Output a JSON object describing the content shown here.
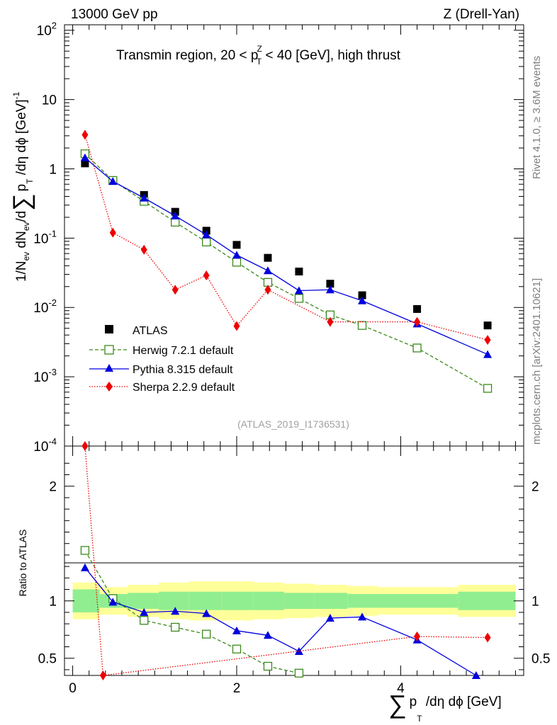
{
  "header": {
    "left": "13000 GeV pp",
    "right": "Z (Drell-Yan)"
  },
  "side_labels": {
    "rivet": "Rivet 4.1.0, ≥ 3.6M events",
    "mcplots": "mcplots.cern.ch [arXiv:2401.10621]"
  },
  "colors": {
    "atlas": "#000000",
    "herwig": "#3a8a1a",
    "pythia": "#0000dd",
    "sherpa": "#ee0000",
    "band_inner": "#90ee90",
    "band_outer": "#ffff99"
  },
  "chart_data": [
    {
      "type": "scatter",
      "panel": "main",
      "title": "Transmin region, 20 < p_T^Z < 40 [GeV], high thrust",
      "title_parts": {
        "pre": "Transmin region, 20 < p",
        "sup": "Z",
        "sub": "T",
        "post": " < 40 [GeV], high thrust"
      },
      "yscale": "log",
      "ylim": [
        0.0001,
        120
      ],
      "xlim": [
        -0.1,
        5.5
      ],
      "ylabel": "1/N_ev dN_ev/d∑ p_T /dη dϕ [GeV]^-1",
      "ylabel_parts": {
        "a": "1/N",
        "a_sub": "ev",
        "b": " dN",
        "b_sub": "ev",
        "c": "/d",
        "sum": "∑",
        "d": "p",
        "d_sub": "T",
        "e": " /dη dϕ  [GeV]",
        "e_sup": "-1"
      },
      "yticks": [
        {
          "value": 0.0001,
          "base": "10",
          "exp": "-4"
        },
        {
          "value": 0.001,
          "base": "10",
          "exp": "-3"
        },
        {
          "value": 0.01,
          "base": "10",
          "exp": "-2"
        },
        {
          "value": 0.1,
          "base": "10",
          "exp": "-1"
        },
        {
          "value": 1,
          "base": "1",
          "exp": ""
        },
        {
          "value": 10,
          "base": "10",
          "exp": ""
        },
        {
          "value": 100,
          "base": "10",
          "exp": "2"
        }
      ],
      "watermark": "(ATLAS_2019_I1736531)",
      "legend": [
        {
          "key": "atlas",
          "label": "ATLAS"
        },
        {
          "key": "herwig",
          "label": "Herwig 7.2.1 default"
        },
        {
          "key": "pythia",
          "label": "Pythia 8.315 default"
        },
        {
          "key": "sherpa",
          "label": "Sherpa 2.2.9 default"
        }
      ],
      "series": [
        {
          "name": "ATLAS",
          "key": "atlas",
          "x": [
            0.15,
            0.49,
            0.87,
            1.25,
            1.63,
            2.0,
            2.38,
            2.76,
            3.14,
            3.53,
            4.2,
            5.06
          ],
          "values": [
            1.2,
            0.67,
            0.42,
            0.24,
            0.128,
            0.08,
            0.052,
            0.033,
            0.022,
            0.015,
            0.0095,
            0.0055
          ]
        },
        {
          "name": "Herwig 7.2.1 default",
          "key": "herwig",
          "x": [
            0.15,
            0.49,
            0.87,
            1.25,
            1.63,
            2.0,
            2.38,
            2.76,
            3.14,
            3.53,
            4.2,
            5.06
          ],
          "values": [
            1.65,
            0.68,
            0.34,
            0.17,
            0.088,
            0.045,
            0.023,
            0.0135,
            0.0078,
            0.0055,
            0.0026,
            0.00068
          ]
        },
        {
          "name": "Pythia 8.315 default",
          "key": "pythia",
          "x": [
            0.15,
            0.49,
            0.87,
            1.25,
            1.63,
            2.0,
            2.38,
            2.76,
            3.14,
            3.53,
            4.2,
            5.06
          ],
          "values": [
            1.45,
            0.66,
            0.38,
            0.21,
            0.112,
            0.057,
            0.034,
            0.0175,
            0.018,
            0.0125,
            0.0058,
            0.0021
          ]
        },
        {
          "name": "Sherpa 2.2.9 default",
          "key": "sherpa",
          "x": [
            0.15,
            0.49,
            0.87,
            1.25,
            1.63,
            2.0,
            2.38,
            3.14,
            4.2,
            5.06
          ],
          "values": [
            3.1,
            0.12,
            0.068,
            0.018,
            0.029,
            0.0054,
            0.018,
            0.0062,
            0.0062,
            0.0034
          ]
        }
      ]
    },
    {
      "type": "line",
      "panel": "ratio",
      "ylabel": "Ratio to ATLAS",
      "ylim": [
        0.35,
        2.35
      ],
      "xlim": [
        -0.1,
        5.5
      ],
      "xlabel": "∑ p_T /dη dϕ [GeV]",
      "xlabel_parts": {
        "sum": "∑",
        "p": "p",
        "sub": "T",
        "rest": " /dη dϕ [GeV]"
      },
      "xticks": [
        0,
        2,
        4
      ],
      "yticks": [
        0.5,
        1,
        2
      ],
      "band_edges": [
        0.0,
        0.33,
        0.67,
        1.05,
        1.42,
        1.82,
        2.2,
        2.58,
        2.95,
        3.35,
        3.72,
        4.7,
        5.4
      ],
      "band_inner": [
        0.1,
        0.06,
        0.07,
        0.08,
        0.08,
        0.08,
        0.08,
        0.07,
        0.07,
        0.06,
        0.06,
        0.08
      ],
      "band_outer": [
        0.16,
        0.12,
        0.14,
        0.16,
        0.17,
        0.17,
        0.16,
        0.15,
        0.14,
        0.13,
        0.12,
        0.14
      ],
      "series": [
        {
          "name": "Herwig 7.2.1 default",
          "key": "herwig",
          "x": [
            0.15,
            0.49,
            0.87,
            1.25,
            1.63,
            2.0,
            2.38,
            2.76
          ],
          "values": [
            1.44,
            1.02,
            0.83,
            0.77,
            0.71,
            0.58,
            0.43,
            0.37
          ]
        },
        {
          "name": "Pythia 8.315 default",
          "key": "pythia",
          "x": [
            0.15,
            0.49,
            0.87,
            1.25,
            1.63,
            2.0,
            2.38,
            2.76,
            3.14,
            3.53,
            4.2,
            4.92
          ],
          "values": [
            1.29,
            0.99,
            0.9,
            0.91,
            0.89,
            0.74,
            0.7,
            0.56,
            0.85,
            0.86,
            0.66,
            0.35
          ]
        },
        {
          "name": "Sherpa 2.2.9 default",
          "key": "sherpa",
          "x": [
            0.15,
            0.37,
            4.2,
            5.06
          ],
          "values": [
            2.35,
            0.35,
            0.69,
            0.68
          ]
        }
      ]
    }
  ]
}
